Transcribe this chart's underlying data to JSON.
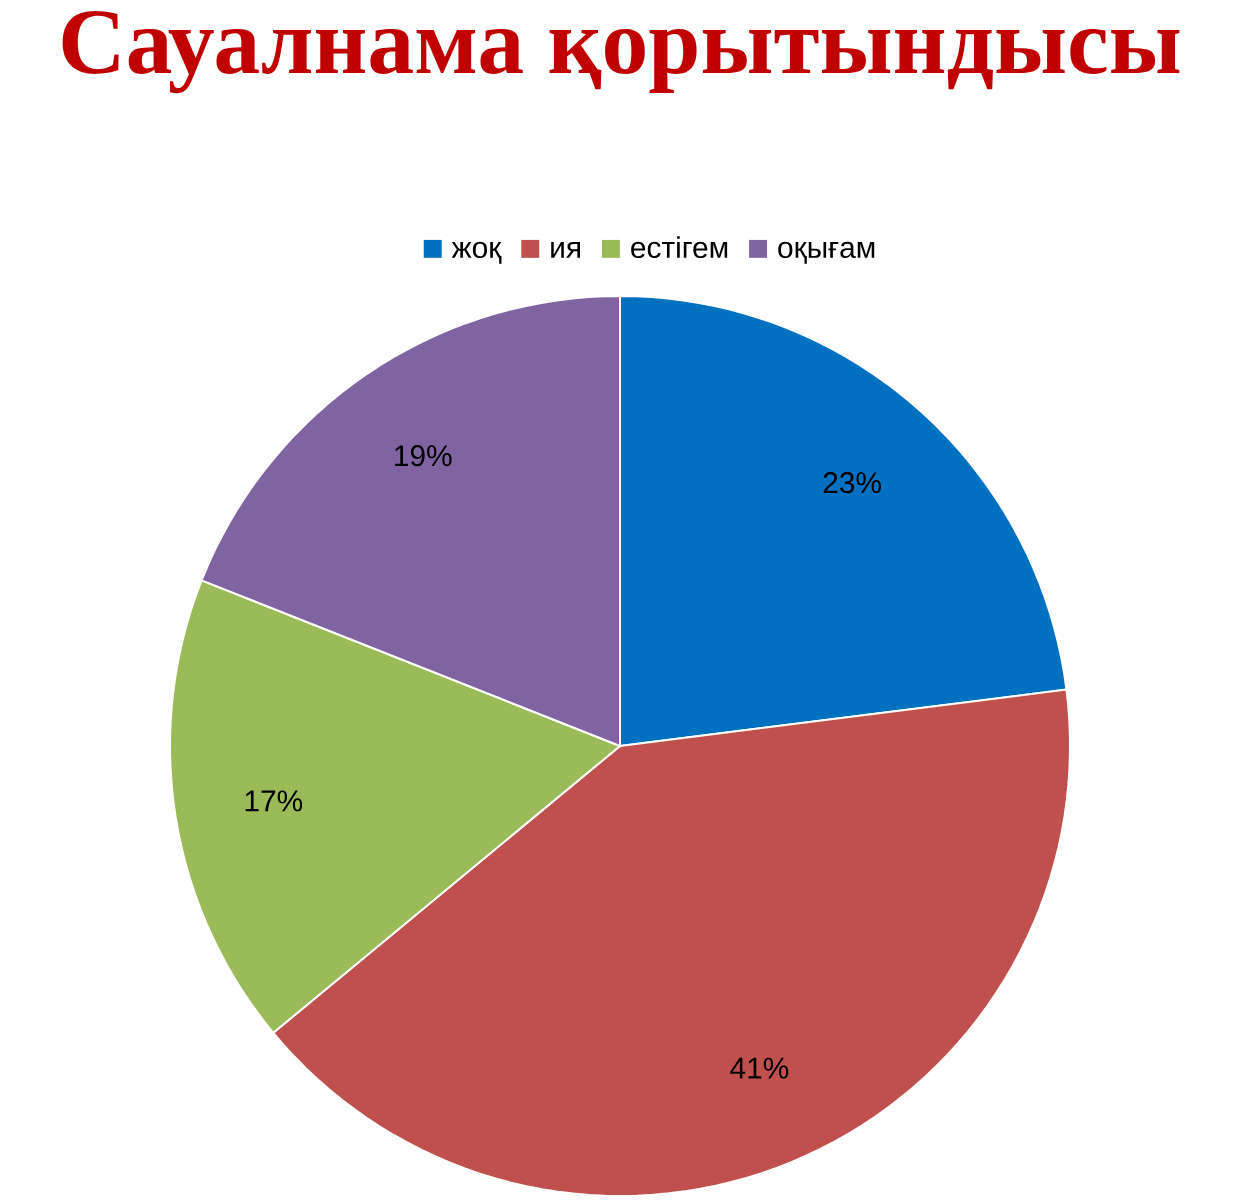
{
  "chart_data": {
    "type": "pie",
    "title": "Сауалнама қорытындысы",
    "categories": [
      "жоқ",
      "ия",
      "естігем",
      "оқығам"
    ],
    "values": [
      23,
      41,
      17,
      19
    ],
    "colors": [
      "#0070c0",
      "#c0504d",
      "#9bbb59",
      "#8064a2"
    ],
    "value_labels": [
      "23%",
      "41%",
      "17%",
      "19%"
    ],
    "legend": "top"
  }
}
